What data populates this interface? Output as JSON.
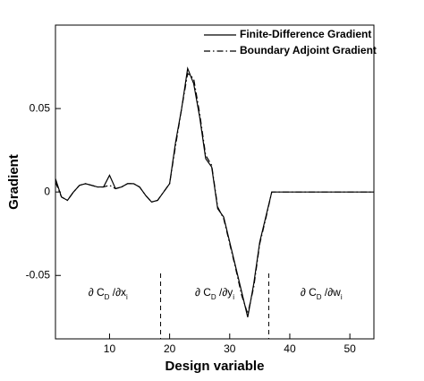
{
  "chart_data": {
    "type": "line",
    "x_label": "Design variable",
    "y_label": "Gradient",
    "x": [
      1,
      2,
      3,
      4,
      5,
      6,
      7,
      8,
      9,
      10,
      11,
      12,
      13,
      14,
      15,
      16,
      17,
      18,
      19,
      20,
      21,
      22,
      23,
      24,
      25,
      26,
      27,
      28,
      29,
      30,
      31,
      32,
      33,
      34,
      35,
      36,
      37,
      38,
      39,
      40,
      41,
      42,
      43,
      44,
      45,
      46,
      47,
      48,
      49,
      50,
      51,
      52,
      53,
      54
    ],
    "series": [
      {
        "name": "Finite-Difference Gradient",
        "color": "#000000",
        "dash": "solid",
        "values": [
          0.008,
          -0.003,
          -0.005,
          0.0,
          0.004,
          0.005,
          0.004,
          0.003,
          0.003,
          0.01,
          0.002,
          0.003,
          0.005,
          0.005,
          0.003,
          -0.002,
          -0.006,
          -0.005,
          0.0,
          0.005,
          0.03,
          0.05,
          0.074,
          0.065,
          0.045,
          0.02,
          0.015,
          -0.01,
          -0.015,
          -0.03,
          -0.045,
          -0.06,
          -0.075,
          -0.055,
          -0.03,
          -0.015,
          0.0,
          0,
          0,
          0,
          0,
          0,
          0,
          0,
          0,
          0,
          0,
          0,
          0,
          0,
          0,
          0,
          0,
          0
        ]
      },
      {
        "name": "Boundary Adjoint Gradient",
        "color": "#000000",
        "dash": "dashdot",
        "values": [
          0.006,
          -0.003,
          -0.005,
          0.0,
          0.004,
          0.005,
          0.004,
          0.003,
          0.003,
          0.004,
          0.002,
          0.003,
          0.005,
          0.005,
          0.003,
          -0.002,
          -0.006,
          -0.005,
          0.0,
          0.005,
          0.028,
          0.05,
          0.071,
          0.068,
          0.047,
          0.022,
          0.016,
          -0.009,
          -0.016,
          -0.031,
          -0.046,
          -0.062,
          -0.073,
          -0.057,
          -0.031,
          -0.016,
          0.0,
          0,
          0,
          0,
          0,
          0,
          0,
          0,
          0,
          0,
          0,
          0,
          0,
          0,
          0,
          0,
          0,
          0
        ]
      }
    ],
    "xlim": [
      1,
      54
    ],
    "xticks": [
      10,
      20,
      30,
      40,
      50
    ],
    "ylim": [
      -0.088,
      0.1
    ],
    "yticks": [
      -0.05,
      0,
      0.05
    ],
    "legend": "upper right",
    "separators": [
      18.5,
      36.5
    ],
    "annotations": [
      {
        "text": "∂ C",
        "sub": "D",
        "rest": " /∂x",
        "sub2": "i"
      },
      {
        "text": "∂ C",
        "sub": "D",
        "rest": " /∂y",
        "sub2": "i"
      },
      {
        "text": "∂ C",
        "sub": "D",
        "rest": " /∂w",
        "sub2": "i"
      }
    ]
  }
}
